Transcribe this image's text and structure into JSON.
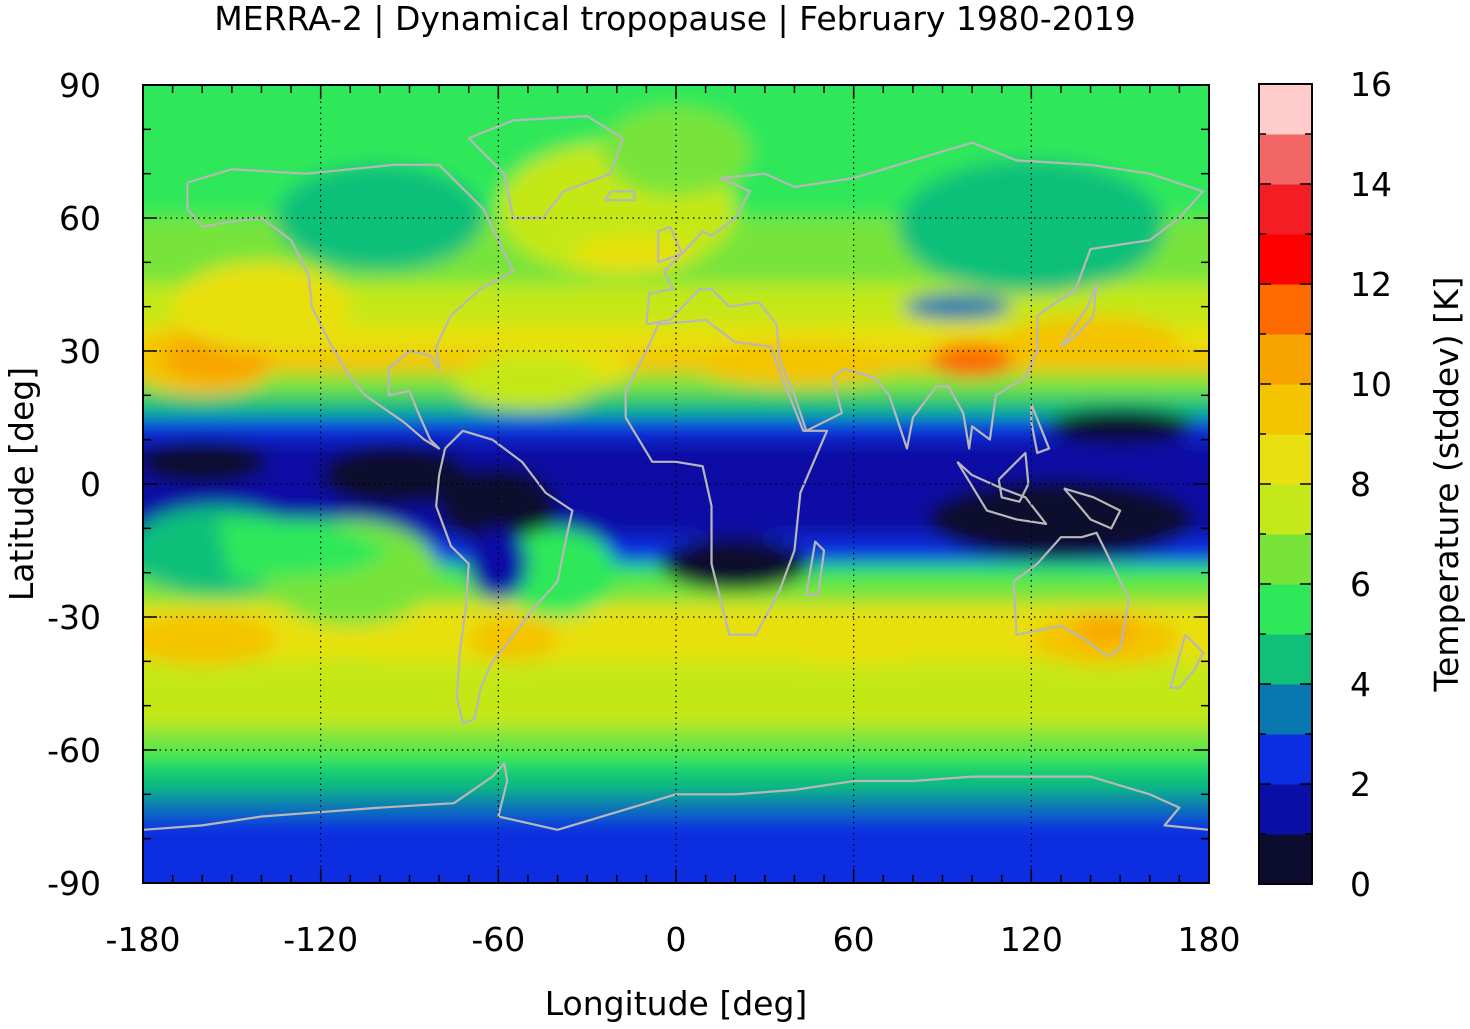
{
  "chart_data": {
    "type": "heatmap",
    "title": "MERRA-2 | Dynamical tropopause | February 1980-2019",
    "xlabel": "Longitude [deg]",
    "ylabel": "Latitude [deg]",
    "xlim": [
      -180,
      180
    ],
    "ylim": [
      -90,
      90
    ],
    "x_ticks": [
      -180,
      -120,
      -60,
      0,
      60,
      120,
      180
    ],
    "x_tick_labels": [
      "-180",
      "-120",
      "-60",
      "0",
      "60",
      "120",
      "180"
    ],
    "y_ticks": [
      90,
      60,
      30,
      0,
      -30,
      -60,
      -90
    ],
    "y_tick_labels": [
      "90",
      "60",
      "30",
      "0",
      "-30",
      "-60",
      "-90"
    ],
    "grid": true,
    "colorbar": {
      "label": "Temperature (stddev) [K]",
      "min": 0,
      "max": 16,
      "step": 1,
      "tick_labels": [
        "0",
        "2",
        "4",
        "6",
        "8",
        "10",
        "12",
        "14",
        "16"
      ],
      "colors": [
        "#0b0c2e",
        "#0a10a6",
        "#0a2ee0",
        "#0a78b0",
        "#10c07a",
        "#2ee85a",
        "#78e43a",
        "#c4e818",
        "#e8e010",
        "#f4c400",
        "#f8a400",
        "#fc6a00",
        "#ff0000",
        "#f21e24",
        "#f26666",
        "#ffcccc"
      ]
    },
    "field_description": [
      {
        "lat_band": "70N-90N",
        "value": 6
      },
      {
        "lat_band": "55N-70N",
        "value": 5
      },
      {
        "lat_band": "30N-45N",
        "value": 8
      },
      {
        "lat_band": "25N-32N",
        "value": 10
      },
      {
        "lat_band": "10N-20N",
        "value": 2.5
      },
      {
        "lat_band": "10S-10N",
        "value": 1.5
      },
      {
        "lat_band": "20S-30S",
        "value": 6
      },
      {
        "lat_band": "30S-40S",
        "value": 9
      },
      {
        "lat_band": "40S-55S",
        "value": 7.5
      },
      {
        "lat_band": "60S-70S",
        "value": 4.5
      },
      {
        "lat_band": "75S-90S",
        "value": 2.5
      }
    ]
  }
}
